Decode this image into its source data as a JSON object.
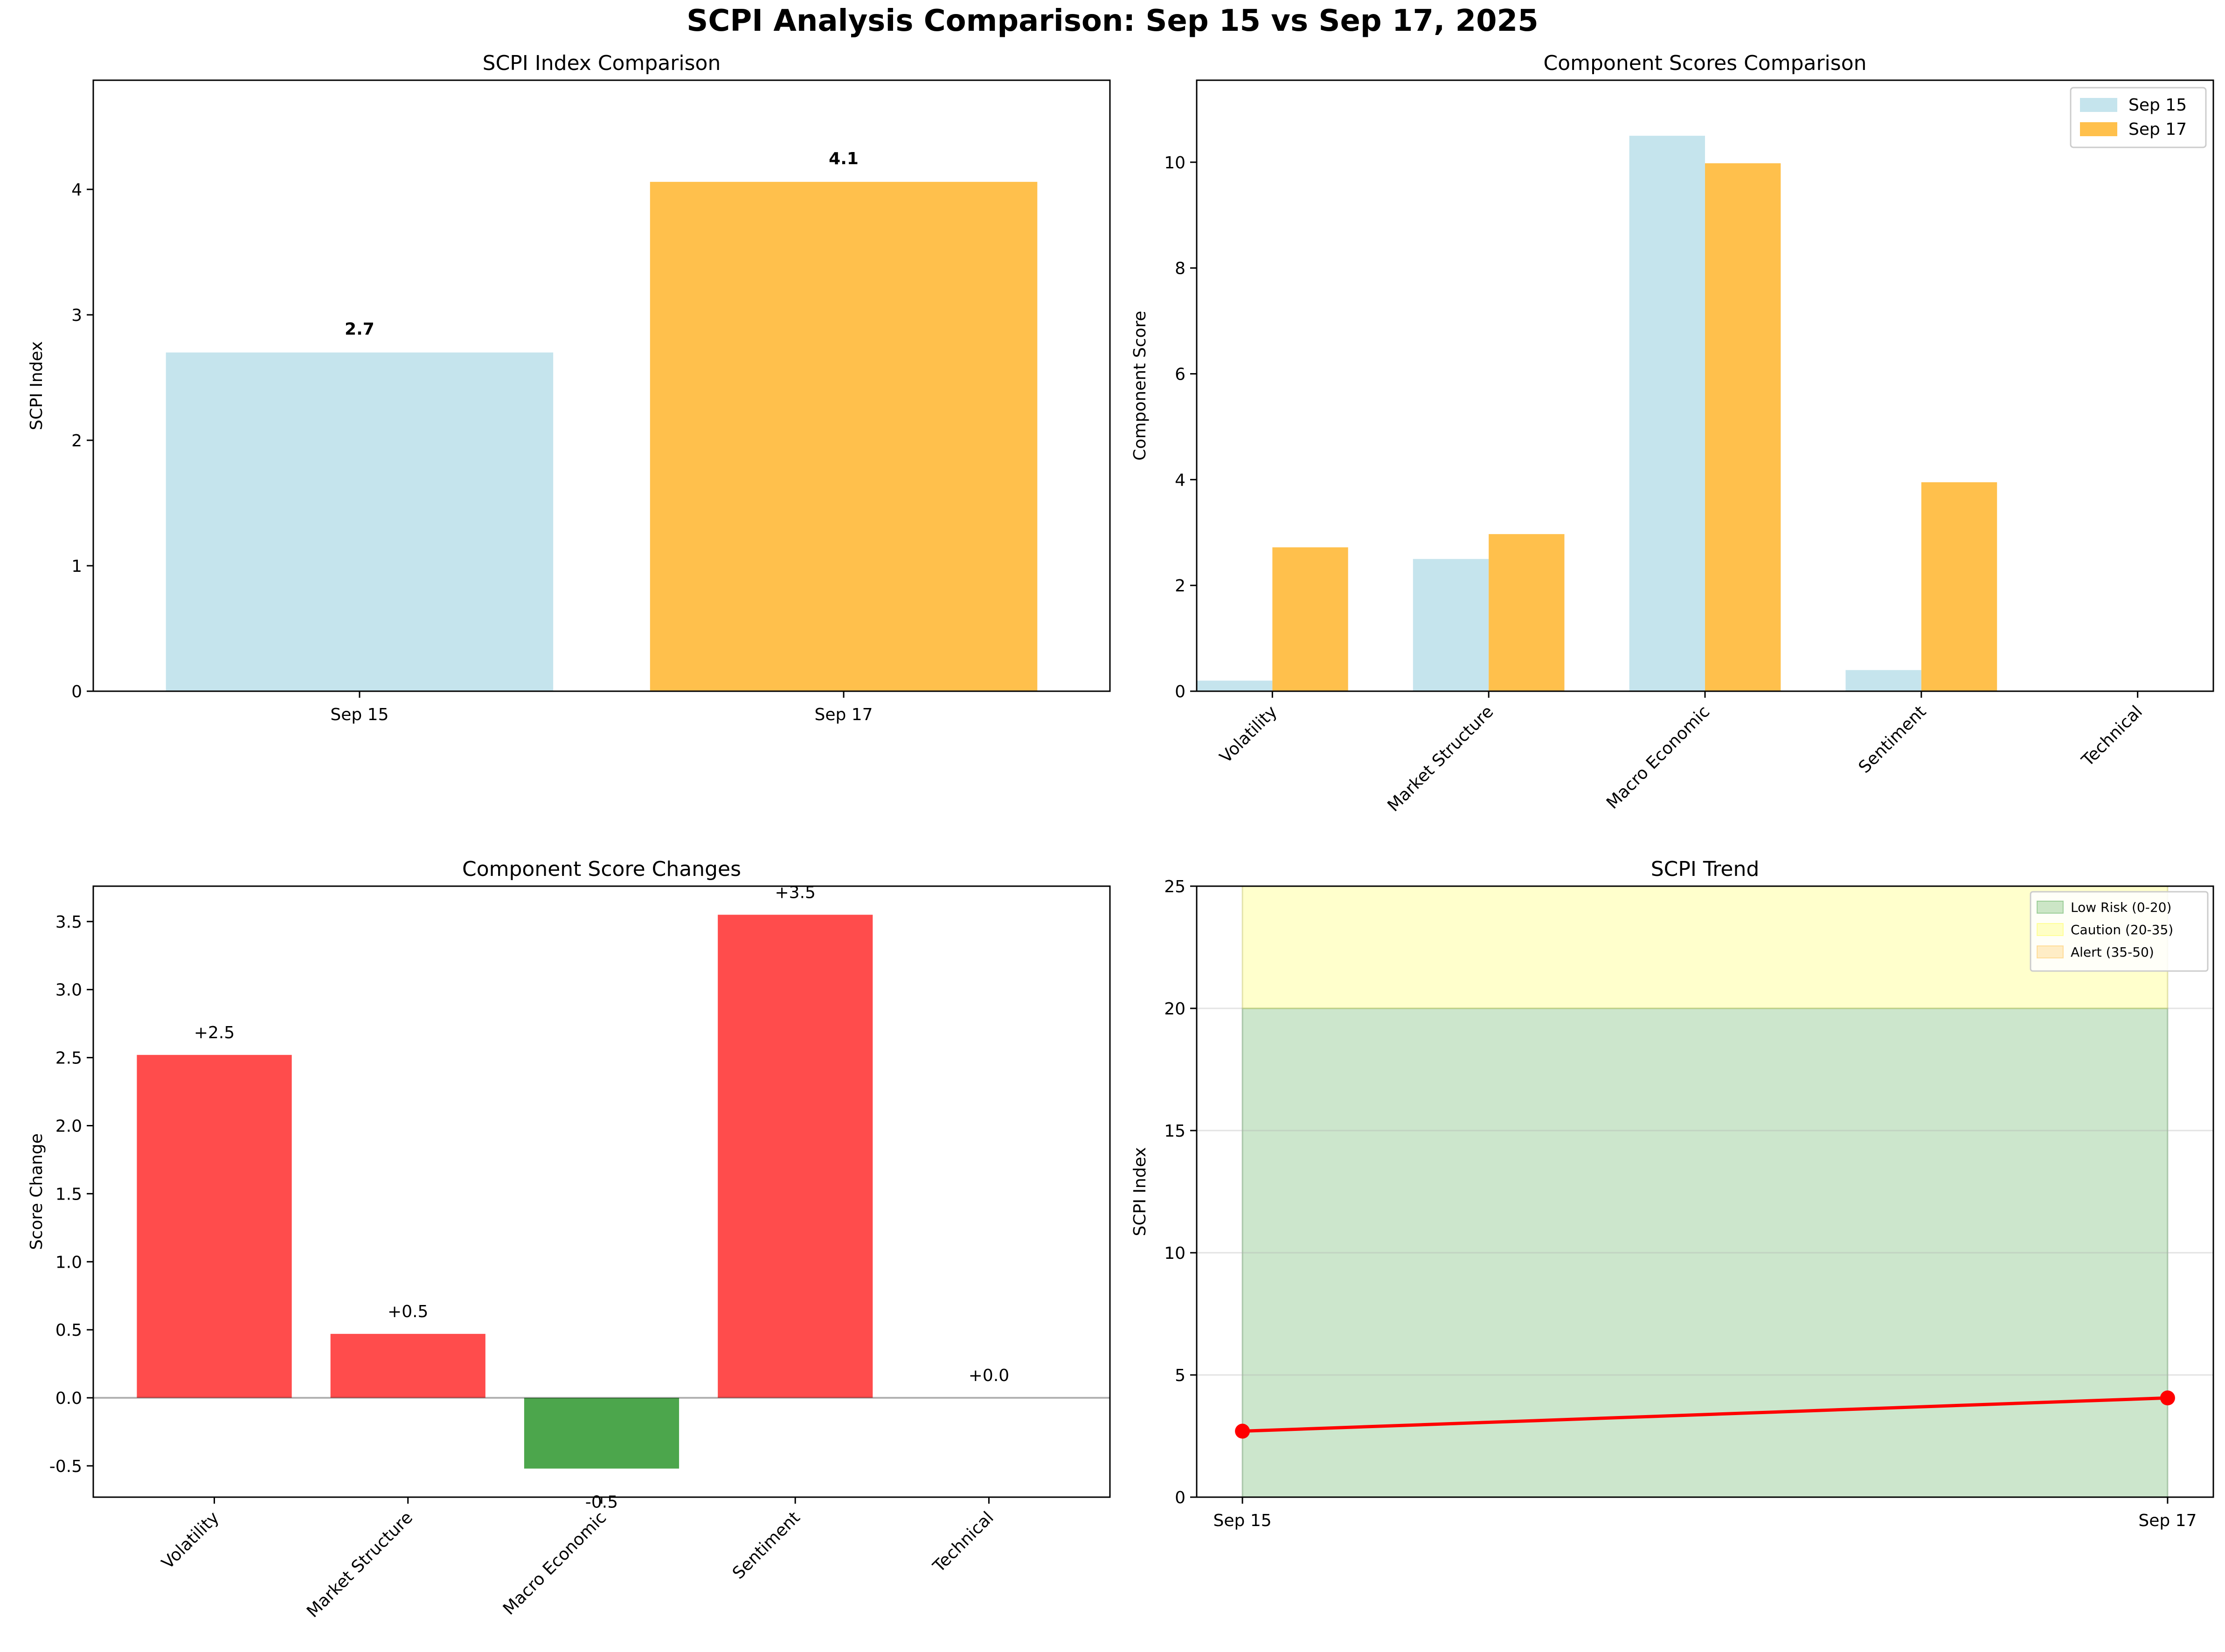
{
  "suptitle": "SCPI Analysis Comparison: Sep 15 vs Sep 17, 2025",
  "colors": {
    "sep15": "#add8e6",
    "sep17": "#ffa500",
    "increase": "#ff0000",
    "decrease": "#008000",
    "trend_line": "#ff0000",
    "zone_low": "#008000",
    "zone_caution": "#ffff00",
    "zone_alert": "#ffa500"
  },
  "chart_data": [
    {
      "id": "index",
      "type": "bar",
      "title": "SCPI Index Comparison",
      "ylabel": "SCPI Index",
      "xlabel": "",
      "categories": [
        "Sep 15",
        "Sep 17"
      ],
      "values": [
        2.7,
        4.06
      ],
      "data_labels": [
        "2.7",
        "4.1"
      ],
      "bar_colors": [
        "#add8e6",
        "#ffa500"
      ],
      "ylim": [
        0,
        4.87
      ],
      "yticks": [
        0,
        1,
        2,
        3,
        4
      ],
      "legend": null
    },
    {
      "id": "components",
      "type": "bar",
      "title": "Component Scores Comparison",
      "ylabel": "Component Score",
      "xlabel": "",
      "categories": [
        "Volatility",
        "Market Structure",
        "Macro Economic",
        "Sentiment",
        "Technical"
      ],
      "series": [
        {
          "name": "Sep 15",
          "values": [
            0.2,
            2.5,
            10.5,
            0.4,
            0.0
          ],
          "color": "#add8e6"
        },
        {
          "name": "Sep 17",
          "values": [
            2.72,
            2.97,
            9.98,
            3.95,
            0.0
          ],
          "color": "#ffa500"
        }
      ],
      "ylim": [
        0,
        11.55
      ],
      "yticks": [
        0,
        2,
        4,
        6,
        8,
        10
      ],
      "legend": "top-right"
    },
    {
      "id": "changes",
      "type": "bar",
      "title": "Component Score Changes",
      "ylabel": "Score Change",
      "xlabel": "",
      "categories": [
        "Volatility",
        "Market Structure",
        "Macro Economic",
        "Sentiment",
        "Technical"
      ],
      "values": [
        2.52,
        0.47,
        -0.52,
        3.55,
        0.0
      ],
      "data_labels": [
        "+2.5",
        "+0.5",
        "-0.5",
        "+3.5",
        "+0.0"
      ],
      "ylim": [
        -0.73,
        3.76
      ],
      "yticks": [
        -0.5,
        0.0,
        0.5,
        1.0,
        1.5,
        2.0,
        2.5,
        3.0,
        3.5
      ],
      "ytick_labels": [
        "-0.5",
        "0.0",
        "0.5",
        "1.0",
        "1.5",
        "2.0",
        "2.5",
        "3.0",
        "3.5"
      ],
      "legend": null
    },
    {
      "id": "trend",
      "type": "line",
      "title": "SCPI Trend",
      "ylabel": "SCPI Index",
      "xlabel": "",
      "x": [
        "Sep 15",
        "Sep 17"
      ],
      "y": [
        2.7,
        4.06
      ],
      "zones": [
        {
          "name": "Low Risk (0-20)",
          "from": 0,
          "to": 20,
          "color": "#008000"
        },
        {
          "name": "Caution (20-35)",
          "from": 20,
          "to": 35,
          "color": "#ffff00"
        },
        {
          "name": "Alert (35-50)",
          "from": 35,
          "to": 50,
          "color": "#ffa500"
        }
      ],
      "ylim": [
        0,
        25
      ],
      "yticks": [
        0,
        5,
        10,
        15,
        20,
        25
      ],
      "grid": true,
      "legend": "top-right"
    }
  ]
}
